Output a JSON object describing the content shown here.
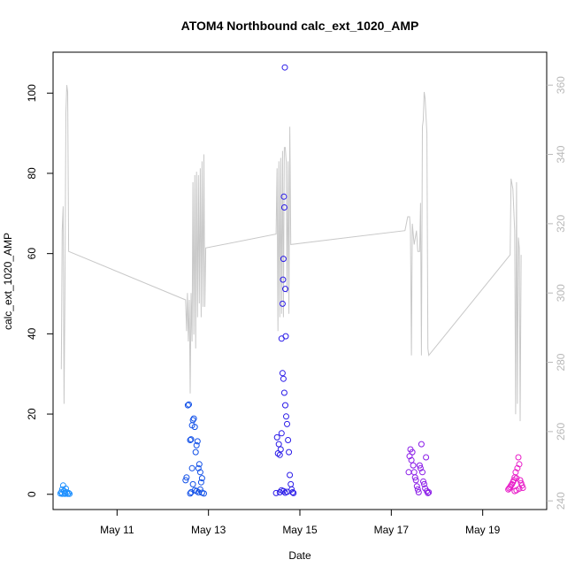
{
  "chart_data": {
    "type": "scatter",
    "title": "ATOM4 Northbound calc_ext_1020_AMP",
    "xlabel": "Date",
    "ylabel": "calc_ext_1020_AMP",
    "x_unit": "day of May 2017 (fractional)",
    "xlim": [
      9.6,
      20.4
    ],
    "ylim": [
      -3.8,
      110.2
    ],
    "y2lim": [
      237.5,
      369.5
    ],
    "x_ticks": [
      {
        "value": 11,
        "label": "May 11"
      },
      {
        "value": 13,
        "label": "May 13"
      },
      {
        "value": 15,
        "label": "May 15"
      },
      {
        "value": 17,
        "label": "May 17"
      },
      {
        "value": 19,
        "label": "May 19"
      }
    ],
    "y_ticks": [
      0,
      20,
      40,
      60,
      80,
      100
    ],
    "y2_ticks": [
      240,
      260,
      280,
      300,
      320,
      340,
      360
    ],
    "grid": false,
    "legend": "none",
    "colors": {
      "line": "#c8c8c8",
      "right_axis": "#b8b8b8",
      "frame": "#000000"
    },
    "series": [
      {
        "type": "line",
        "axis": "right",
        "color": "#c8c8c8",
        "points": [
          [
            9.78,
            278
          ],
          [
            9.8,
            318
          ],
          [
            9.82,
            325
          ],
          [
            9.84,
            268
          ],
          [
            9.86,
            300
          ],
          [
            9.88,
            352
          ],
          [
            9.9,
            360
          ],
          [
            9.92,
            358
          ],
          [
            9.94,
            312
          ],
          [
            12.5,
            298
          ],
          [
            12.52,
            289
          ],
          [
            12.54,
            300
          ],
          [
            12.56,
            286
          ],
          [
            12.58,
            298
          ],
          [
            12.6,
            271
          ],
          [
            12.62,
            300
          ],
          [
            12.64,
            286
          ],
          [
            12.66,
            332
          ],
          [
            12.68,
            288
          ],
          [
            12.7,
            334
          ],
          [
            12.72,
            284
          ],
          [
            12.74,
            335
          ],
          [
            12.76,
            293
          ],
          [
            12.78,
            334
          ],
          [
            12.8,
            297
          ],
          [
            12.82,
            336
          ],
          [
            12.84,
            293
          ],
          [
            12.86,
            338
          ],
          [
            12.88,
            296
          ],
          [
            12.9,
            340
          ],
          [
            12.92,
            296
          ],
          [
            12.94,
            313
          ],
          [
            14.48,
            317
          ],
          [
            14.5,
            336
          ],
          [
            14.52,
            289
          ],
          [
            14.54,
            338
          ],
          [
            14.56,
            293
          ],
          [
            14.58,
            339
          ],
          [
            14.6,
            294
          ],
          [
            14.62,
            341
          ],
          [
            14.64,
            293
          ],
          [
            14.66,
            342
          ],
          [
            14.68,
            342
          ],
          [
            14.7,
            338
          ],
          [
            14.72,
            300
          ],
          [
            14.74,
            338
          ],
          [
            14.76,
            294
          ],
          [
            14.78,
            348
          ],
          [
            14.8,
            314
          ],
          [
            17.3,
            318
          ],
          [
            17.36,
            322
          ],
          [
            17.4,
            322
          ],
          [
            17.42,
            318
          ],
          [
            17.44,
            282
          ],
          [
            17.46,
            320
          ],
          [
            17.5,
            314
          ],
          [
            17.55,
            318
          ],
          [
            17.58,
            312
          ],
          [
            17.62,
            312
          ],
          [
            17.64,
            326
          ],
          [
            17.66,
            282
          ],
          [
            17.68,
            348
          ],
          [
            17.7,
            350
          ],
          [
            17.72,
            358
          ],
          [
            17.74,
            356
          ],
          [
            17.78,
            346
          ],
          [
            17.8,
            284
          ],
          [
            17.82,
            282
          ],
          [
            19.6,
            311
          ],
          [
            19.62,
            333
          ],
          [
            19.66,
            330
          ],
          [
            19.7,
            318
          ],
          [
            19.72,
            265
          ],
          [
            19.74,
            332
          ],
          [
            19.76,
            268
          ],
          [
            19.78,
            316
          ],
          [
            19.8,
            313
          ],
          [
            19.82,
            263
          ],
          [
            19.84,
            311
          ]
        ]
      },
      {
        "name": "",
        "type": "scatter",
        "color": "#1e90ff",
        "points": [
          [
            9.76,
            0.2
          ],
          [
            9.78,
            0.5
          ],
          [
            9.8,
            1.2
          ],
          [
            9.82,
            2.2
          ],
          [
            9.84,
            0.8
          ],
          [
            9.86,
            0.3
          ],
          [
            9.88,
            1.4
          ],
          [
            9.9,
            0.5
          ],
          [
            9.92,
            0.1
          ],
          [
            9.94,
            0.3
          ],
          [
            9.96,
            0.1
          ],
          [
            9.8,
            0.1
          ],
          [
            9.86,
            0.1
          ]
        ]
      },
      {
        "name": "",
        "type": "scatter",
        "color": "#1150e8",
        "points": [
          [
            12.5,
            3.5
          ],
          [
            12.52,
            4.2
          ],
          [
            12.55,
            22.2
          ],
          [
            12.57,
            22.4
          ],
          [
            12.6,
            13.5
          ],
          [
            12.62,
            13.7
          ],
          [
            12.64,
            17.2
          ],
          [
            12.66,
            18.5
          ],
          [
            12.68,
            18.9
          ],
          [
            12.7,
            16.8
          ],
          [
            12.72,
            10.5
          ],
          [
            12.74,
            12.2
          ],
          [
            12.76,
            13.2
          ],
          [
            12.78,
            6.5
          ],
          [
            12.8,
            7.5
          ],
          [
            12.82,
            5.5
          ],
          [
            12.84,
            3.0
          ],
          [
            12.86,
            4.0
          ],
          [
            12.6,
            0.2
          ],
          [
            12.62,
            0.5
          ],
          [
            12.64,
            6.5
          ],
          [
            12.66,
            2.5
          ],
          [
            12.7,
            1.0
          ],
          [
            12.74,
            0.8
          ],
          [
            12.78,
            0.5
          ],
          [
            12.82,
            1.2
          ],
          [
            12.86,
            0.4
          ],
          [
            12.9,
            0.2
          ]
        ]
      },
      {
        "name": "",
        "type": "scatter",
        "color": "#2a1be8",
        "points": [
          [
            14.48,
            0.3
          ],
          [
            14.5,
            14.2
          ],
          [
            14.52,
            10.2
          ],
          [
            14.54,
            12.5
          ],
          [
            14.56,
            9.8
          ],
          [
            14.58,
            11.2
          ],
          [
            14.6,
            15.2
          ],
          [
            14.62,
            47.5
          ],
          [
            14.63,
            53.5
          ],
          [
            14.64,
            58.7
          ],
          [
            14.65,
            74.2
          ],
          [
            14.66,
            71.5
          ],
          [
            14.67,
            106.4
          ],
          [
            14.68,
            51.2
          ],
          [
            14.69,
            39.4
          ],
          [
            14.6,
            38.8
          ],
          [
            14.62,
            30.2
          ],
          [
            14.64,
            28.8
          ],
          [
            14.66,
            25.3
          ],
          [
            14.68,
            22.2
          ],
          [
            14.7,
            19.4
          ],
          [
            14.72,
            17.5
          ],
          [
            14.74,
            13.5
          ],
          [
            14.76,
            10.5
          ],
          [
            14.78,
            4.8
          ],
          [
            14.8,
            2.5
          ],
          [
            14.82,
            1.2
          ],
          [
            14.84,
            0.5
          ],
          [
            14.86,
            0.3
          ],
          [
            14.56,
            0.5
          ],
          [
            14.6,
            1.0
          ],
          [
            14.64,
            0.8
          ],
          [
            14.68,
            0.4
          ],
          [
            14.72,
            0.6
          ]
        ]
      },
      {
        "name": "",
        "type": "scatter",
        "color": "#8a1be8",
        "points": [
          [
            17.38,
            5.5
          ],
          [
            17.4,
            9.5
          ],
          [
            17.42,
            11.2
          ],
          [
            17.44,
            8.5
          ],
          [
            17.46,
            10.5
          ],
          [
            17.48,
            7.2
          ],
          [
            17.5,
            5.5
          ],
          [
            17.52,
            4.2
          ],
          [
            17.54,
            3.5
          ],
          [
            17.56,
            2.0
          ],
          [
            17.58,
            1.2
          ],
          [
            17.6,
            0.5
          ],
          [
            17.62,
            7.2
          ],
          [
            17.64,
            6.5
          ],
          [
            17.66,
            12.5
          ],
          [
            17.68,
            5.5
          ],
          [
            17.7,
            3.2
          ],
          [
            17.72,
            2.5
          ],
          [
            17.74,
            1.5
          ],
          [
            17.76,
            9.2
          ],
          [
            17.78,
            0.8
          ],
          [
            17.8,
            0.3
          ],
          [
            17.82,
            0.5
          ]
        ]
      },
      {
        "name": "",
        "type": "scatter",
        "color": "#e81bc8",
        "points": [
          [
            19.56,
            1.2
          ],
          [
            19.58,
            1.5
          ],
          [
            19.6,
            1.8
          ],
          [
            19.62,
            2.2
          ],
          [
            19.64,
            2.5
          ],
          [
            19.66,
            3.0
          ],
          [
            19.68,
            3.5
          ],
          [
            19.7,
            4.2
          ],
          [
            19.72,
            5.5
          ],
          [
            19.74,
            4.0
          ],
          [
            19.76,
            6.5
          ],
          [
            19.78,
            9.2
          ],
          [
            19.8,
            7.5
          ],
          [
            19.82,
            3.5
          ],
          [
            19.84,
            2.8
          ],
          [
            19.86,
            2.2
          ],
          [
            19.88,
            1.6
          ],
          [
            19.7,
            0.8
          ],
          [
            19.74,
            1.0
          ],
          [
            19.8,
            1.4
          ]
        ]
      }
    ]
  }
}
